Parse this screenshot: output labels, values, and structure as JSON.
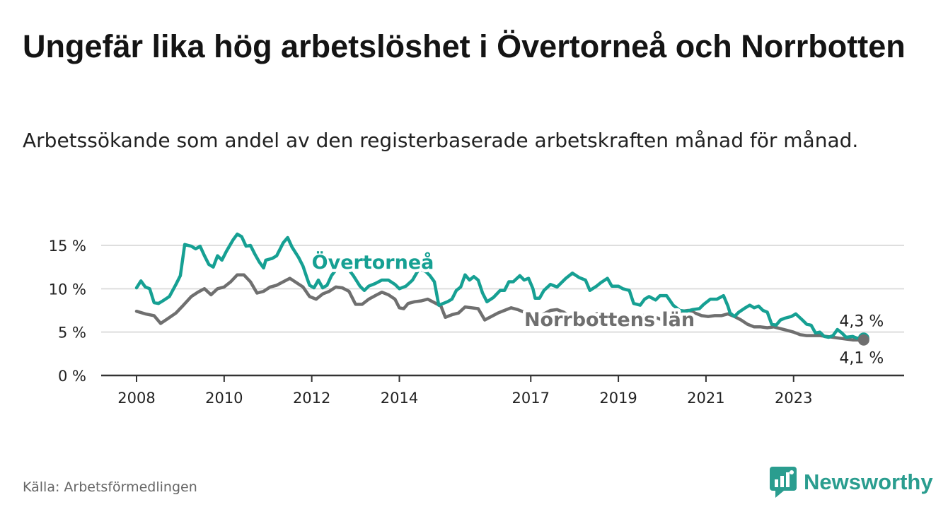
{
  "header": {
    "title": "Ungefär lika hög arbetslöshet i Övertorneå och Norrbotten",
    "subtitle": "Arbetssökande som andel av den registerbaserade arbetskraften månad för månad."
  },
  "footer": {
    "source": "Källa: Arbetsförmedlingen",
    "brand": "Newsworthy"
  },
  "colors": {
    "overtornea": "#16a093",
    "norrbotten": "#6f6f6f",
    "grid": "#dedede",
    "axis": "#333333"
  },
  "chart_data": {
    "type": "line",
    "title": "Ungefär lika hög arbetslöshet i Övertorneå och Norrbotten",
    "subtitle": "Arbetssökande som andel av den registerbaserade arbetskraften månad för månad.",
    "xlabel": "",
    "ylabel": "",
    "xlim": [
      2008,
      2024.7
    ],
    "ylim": [
      0,
      16.5
    ],
    "grid": true,
    "y_ticks": [
      {
        "value": 0,
        "label": "0 %"
      },
      {
        "value": 5,
        "label": "5 %"
      },
      {
        "value": 10,
        "label": "10 %"
      },
      {
        "value": 15,
        "label": "15 %"
      }
    ],
    "x_ticks": [
      {
        "value": 2008,
        "label": "2008"
      },
      {
        "value": 2010,
        "label": "2010"
      },
      {
        "value": 2012,
        "label": "2012"
      },
      {
        "value": 2014,
        "label": "2014"
      },
      {
        "value": 2017,
        "label": "2017"
      },
      {
        "value": 2019,
        "label": "2019"
      },
      {
        "value": 2021,
        "label": "2021"
      },
      {
        "value": 2023,
        "label": "2023"
      }
    ],
    "series": [
      {
        "name": "Övertorneå",
        "color": "#16a093",
        "end_label": "4,3 %",
        "points": [
          [
            2008.0,
            10.1
          ],
          [
            2008.1,
            10.9
          ],
          [
            2008.2,
            10.2
          ],
          [
            2008.3,
            10.0
          ],
          [
            2008.4,
            8.4
          ],
          [
            2008.5,
            8.3
          ],
          [
            2008.6,
            8.6
          ],
          [
            2008.75,
            9.1
          ],
          [
            2008.9,
            10.5
          ],
          [
            2009.0,
            11.5
          ],
          [
            2009.1,
            15.1
          ],
          [
            2009.25,
            14.9
          ],
          [
            2009.35,
            14.6
          ],
          [
            2009.45,
            14.9
          ],
          [
            2009.55,
            13.8
          ],
          [
            2009.65,
            12.8
          ],
          [
            2009.75,
            12.5
          ],
          [
            2009.85,
            13.8
          ],
          [
            2009.95,
            13.3
          ],
          [
            2010.05,
            14.3
          ],
          [
            2010.2,
            15.6
          ],
          [
            2010.3,
            16.3
          ],
          [
            2010.4,
            16.0
          ],
          [
            2010.5,
            14.9
          ],
          [
            2010.6,
            15.0
          ],
          [
            2010.7,
            14.0
          ],
          [
            2010.8,
            13.1
          ],
          [
            2010.9,
            12.4
          ],
          [
            2010.95,
            13.3
          ],
          [
            2011.1,
            13.5
          ],
          [
            2011.2,
            13.8
          ],
          [
            2011.35,
            15.3
          ],
          [
            2011.45,
            15.9
          ],
          [
            2011.55,
            14.8
          ],
          [
            2011.7,
            13.6
          ],
          [
            2011.8,
            12.6
          ],
          [
            2011.9,
            11.1
          ],
          [
            2011.95,
            10.4
          ],
          [
            2012.05,
            10.1
          ],
          [
            2012.15,
            11.0
          ],
          [
            2012.25,
            10.1
          ],
          [
            2012.35,
            10.4
          ],
          [
            2012.45,
            11.5
          ],
          [
            2012.6,
            12.5
          ],
          [
            2012.8,
            12.5
          ],
          [
            2012.95,
            11.5
          ],
          [
            2013.1,
            10.3
          ],
          [
            2013.2,
            9.8
          ],
          [
            2013.3,
            10.3
          ],
          [
            2013.45,
            10.6
          ],
          [
            2013.6,
            11.0
          ],
          [
            2013.75,
            11.0
          ],
          [
            2013.9,
            10.5
          ],
          [
            2014.0,
            10.0
          ],
          [
            2014.15,
            10.3
          ],
          [
            2014.3,
            11.0
          ],
          [
            2014.45,
            12.3
          ],
          [
            2014.6,
            12.0
          ],
          [
            2014.7,
            11.5
          ],
          [
            2014.8,
            10.8
          ],
          [
            2014.9,
            8.1
          ],
          [
            2015.0,
            8.3
          ],
          [
            2015.1,
            8.5
          ],
          [
            2015.2,
            8.8
          ],
          [
            2015.3,
            9.8
          ],
          [
            2015.4,
            10.2
          ],
          [
            2015.5,
            11.6
          ],
          [
            2015.6,
            11.0
          ],
          [
            2015.7,
            11.4
          ],
          [
            2015.8,
            11.0
          ],
          [
            2015.9,
            9.5
          ],
          [
            2016.0,
            8.5
          ],
          [
            2016.15,
            9.0
          ],
          [
            2016.3,
            9.8
          ],
          [
            2016.4,
            9.8
          ],
          [
            2016.5,
            10.8
          ],
          [
            2016.6,
            10.8
          ],
          [
            2016.75,
            11.5
          ],
          [
            2016.85,
            11.0
          ],
          [
            2016.95,
            11.2
          ],
          [
            2017.05,
            10.0
          ],
          [
            2017.1,
            8.9
          ],
          [
            2017.2,
            8.9
          ],
          [
            2017.3,
            9.8
          ],
          [
            2017.45,
            10.5
          ],
          [
            2017.6,
            10.2
          ],
          [
            2017.8,
            11.2
          ],
          [
            2017.95,
            11.8
          ],
          [
            2018.1,
            11.3
          ],
          [
            2018.25,
            11.0
          ],
          [
            2018.35,
            9.8
          ],
          [
            2018.5,
            10.3
          ],
          [
            2018.6,
            10.7
          ],
          [
            2018.75,
            11.2
          ],
          [
            2018.85,
            10.3
          ],
          [
            2019.0,
            10.3
          ],
          [
            2019.1,
            10.0
          ],
          [
            2019.25,
            9.8
          ],
          [
            2019.35,
            8.3
          ],
          [
            2019.5,
            8.1
          ],
          [
            2019.6,
            8.8
          ],
          [
            2019.7,
            9.1
          ],
          [
            2019.85,
            8.7
          ],
          [
            2019.95,
            9.2
          ],
          [
            2020.1,
            9.2
          ],
          [
            2020.25,
            8.1
          ],
          [
            2020.4,
            7.5
          ],
          [
            2020.55,
            7.4
          ],
          [
            2020.7,
            7.6
          ],
          [
            2020.85,
            7.7
          ],
          [
            2020.95,
            8.2
          ],
          [
            2021.1,
            8.8
          ],
          [
            2021.25,
            8.8
          ],
          [
            2021.4,
            9.2
          ],
          [
            2021.5,
            8.0
          ],
          [
            2021.55,
            7.2
          ],
          [
            2021.65,
            6.8
          ],
          [
            2021.75,
            7.3
          ],
          [
            2021.9,
            7.8
          ],
          [
            2022.0,
            8.1
          ],
          [
            2022.1,
            7.8
          ],
          [
            2022.2,
            8.0
          ],
          [
            2022.3,
            7.5
          ],
          [
            2022.4,
            7.3
          ],
          [
            2022.5,
            5.9
          ],
          [
            2022.6,
            5.8
          ],
          [
            2022.7,
            6.4
          ],
          [
            2022.8,
            6.6
          ],
          [
            2022.95,
            6.8
          ],
          [
            2023.05,
            7.1
          ],
          [
            2023.2,
            6.4
          ],
          [
            2023.3,
            5.9
          ],
          [
            2023.4,
            5.8
          ],
          [
            2023.5,
            4.9
          ],
          [
            2023.6,
            5.0
          ],
          [
            2023.7,
            4.5
          ],
          [
            2023.8,
            4.4
          ],
          [
            2023.9,
            4.6
          ],
          [
            2024.0,
            5.3
          ],
          [
            2024.1,
            4.9
          ],
          [
            2024.2,
            4.4
          ],
          [
            2024.35,
            4.5
          ],
          [
            2024.45,
            4.3
          ],
          [
            2024.5,
            4.3
          ],
          [
            2024.6,
            4.3
          ]
        ]
      },
      {
        "name": "Norrbottens län",
        "color": "#6f6f6f",
        "end_label": "4,1 %",
        "points": [
          [
            2008.0,
            7.4
          ],
          [
            2008.2,
            7.1
          ],
          [
            2008.4,
            6.9
          ],
          [
            2008.55,
            6.0
          ],
          [
            2008.7,
            6.5
          ],
          [
            2008.9,
            7.2
          ],
          [
            2009.05,
            8.0
          ],
          [
            2009.25,
            9.1
          ],
          [
            2009.4,
            9.6
          ],
          [
            2009.55,
            10.0
          ],
          [
            2009.7,
            9.3
          ],
          [
            2009.85,
            10.0
          ],
          [
            2010.0,
            10.2
          ],
          [
            2010.15,
            10.8
          ],
          [
            2010.3,
            11.6
          ],
          [
            2010.45,
            11.6
          ],
          [
            2010.6,
            10.8
          ],
          [
            2010.75,
            9.5
          ],
          [
            2010.9,
            9.7
          ],
          [
            2011.05,
            10.2
          ],
          [
            2011.2,
            10.4
          ],
          [
            2011.35,
            10.8
          ],
          [
            2011.5,
            11.2
          ],
          [
            2011.65,
            10.7
          ],
          [
            2011.8,
            10.2
          ],
          [
            2011.95,
            9.1
          ],
          [
            2012.1,
            8.8
          ],
          [
            2012.25,
            9.4
          ],
          [
            2012.4,
            9.7
          ],
          [
            2012.55,
            10.2
          ],
          [
            2012.7,
            10.1
          ],
          [
            2012.85,
            9.7
          ],
          [
            2013.0,
            8.2
          ],
          [
            2013.15,
            8.2
          ],
          [
            2013.3,
            8.8
          ],
          [
            2013.45,
            9.2
          ],
          [
            2013.6,
            9.6
          ],
          [
            2013.75,
            9.3
          ],
          [
            2013.9,
            8.8
          ],
          [
            2014.0,
            7.8
          ],
          [
            2014.1,
            7.7
          ],
          [
            2014.2,
            8.3
          ],
          [
            2014.35,
            8.5
          ],
          [
            2014.5,
            8.6
          ],
          [
            2014.65,
            8.8
          ],
          [
            2014.8,
            8.4
          ],
          [
            2014.95,
            8.0
          ],
          [
            2015.05,
            6.7
          ],
          [
            2015.2,
            7.0
          ],
          [
            2015.35,
            7.2
          ],
          [
            2015.5,
            7.9
          ],
          [
            2015.65,
            7.8
          ],
          [
            2015.8,
            7.7
          ],
          [
            2015.95,
            6.4
          ],
          [
            2016.1,
            6.8
          ],
          [
            2016.25,
            7.2
          ],
          [
            2016.4,
            7.5
          ],
          [
            2016.55,
            7.8
          ],
          [
            2016.7,
            7.6
          ],
          [
            2016.85,
            7.3
          ],
          [
            2017.0,
            6.3
          ],
          [
            2017.15,
            6.4
          ],
          [
            2017.3,
            7.1
          ],
          [
            2017.45,
            7.5
          ],
          [
            2017.6,
            7.6
          ],
          [
            2017.75,
            7.3
          ],
          [
            2017.9,
            6.8
          ],
          [
            2018.05,
            6.2
          ],
          [
            2018.2,
            6.4
          ],
          [
            2018.35,
            6.8
          ],
          [
            2018.5,
            7.1
          ],
          [
            2018.65,
            7.2
          ],
          [
            2018.8,
            6.8
          ],
          [
            2018.95,
            6.2
          ],
          [
            2019.1,
            6.1
          ],
          [
            2019.25,
            6.4
          ],
          [
            2019.4,
            6.7
          ],
          [
            2019.55,
            6.9
          ],
          [
            2019.7,
            7.0
          ],
          [
            2019.85,
            6.7
          ],
          [
            2020.0,
            6.4
          ],
          [
            2020.15,
            6.8
          ],
          [
            2020.3,
            7.2
          ],
          [
            2020.45,
            7.4
          ],
          [
            2020.6,
            7.5
          ],
          [
            2020.75,
            7.2
          ],
          [
            2020.9,
            6.9
          ],
          [
            2021.05,
            6.8
          ],
          [
            2021.2,
            6.9
          ],
          [
            2021.35,
            6.9
          ],
          [
            2021.5,
            7.1
          ],
          [
            2021.65,
            6.8
          ],
          [
            2021.8,
            6.4
          ],
          [
            2021.95,
            5.9
          ],
          [
            2022.1,
            5.6
          ],
          [
            2022.25,
            5.6
          ],
          [
            2022.4,
            5.5
          ],
          [
            2022.55,
            5.6
          ],
          [
            2022.7,
            5.4
          ],
          [
            2022.85,
            5.2
          ],
          [
            2023.0,
            5.0
          ],
          [
            2023.15,
            4.7
          ],
          [
            2023.3,
            4.6
          ],
          [
            2023.45,
            4.6
          ],
          [
            2023.6,
            4.6
          ],
          [
            2023.75,
            4.5
          ],
          [
            2023.9,
            4.4
          ],
          [
            2024.05,
            4.3
          ],
          [
            2024.2,
            4.2
          ],
          [
            2024.35,
            4.1
          ],
          [
            2024.5,
            4.1
          ],
          [
            2024.6,
            4.1
          ]
        ]
      }
    ],
    "annotations": [
      {
        "text": "Övertorneå",
        "series": "Övertorneå",
        "x": 2012.0,
        "y": 12.3
      },
      {
        "text": "Norrbottens län",
        "series": "Norrbottens län",
        "x": 2016.85,
        "y": 5.7
      }
    ]
  }
}
